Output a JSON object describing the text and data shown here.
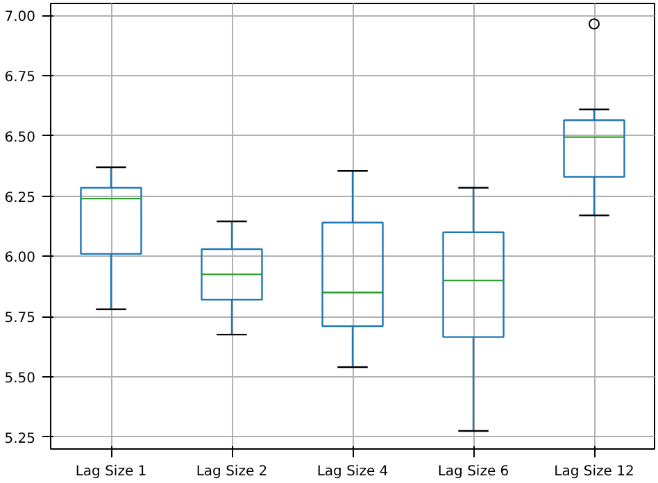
{
  "chart_data": {
    "type": "box",
    "categories": [
      "Lag Size 1",
      "Lag Size 2",
      "Lag Size 4",
      "Lag Size 6",
      "Lag Size 12"
    ],
    "boxes": [
      {
        "low": 5.78,
        "q1": 6.01,
        "median": 6.24,
        "q3": 6.285,
        "high": 6.37
      },
      {
        "low": 5.675,
        "q1": 5.82,
        "median": 5.925,
        "q3": 6.03,
        "high": 6.145
      },
      {
        "low": 5.54,
        "q1": 5.71,
        "median": 5.85,
        "q3": 6.14,
        "high": 6.355
      },
      {
        "low": 5.275,
        "q1": 5.665,
        "median": 5.9,
        "q3": 6.1,
        "high": 6.285
      },
      {
        "low": 6.17,
        "q1": 6.33,
        "median": 6.495,
        "q3": 6.565,
        "high": 6.61,
        "outliers": [
          6.965
        ]
      }
    ],
    "color": "#1f77b4",
    "ylim": [
      5.2,
      7.05
    ],
    "yticks": [
      {
        "value": 5.25,
        "label": "5.25"
      },
      {
        "value": 5.5,
        "label": "5.50"
      },
      {
        "value": 5.75,
        "label": "5.75"
      },
      {
        "value": 6.0,
        "label": "6.00"
      },
      {
        "value": 6.25,
        "label": "6.25"
      },
      {
        "value": 6.5,
        "label": "6.50"
      },
      {
        "value": 6.75,
        "label": "6.75"
      },
      {
        "value": 7.0,
        "label": "7.00"
      }
    ],
    "grid": true
  }
}
